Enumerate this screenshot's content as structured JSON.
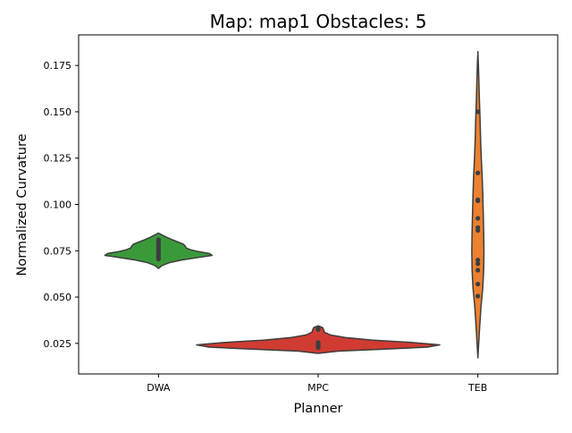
{
  "chart_data": {
    "type": "violin",
    "title": "Map: map1 Obstacles: 5",
    "xlabel": "Planner",
    "ylabel": "Normalized Curvature",
    "ylim": [
      0.0085,
      0.1915
    ],
    "yticks": [
      "0.025",
      "0.050",
      "0.075",
      "0.100",
      "0.125",
      "0.150",
      "0.175"
    ],
    "grid": false,
    "categories": [
      "DWA",
      "MPC",
      "TEB"
    ],
    "colors": {
      "DWA": "#3a9a3a",
      "MPC": "#d03b32",
      "TEB": "#ec8130",
      "edge": "#3d3d3d",
      "points": "#3d3d3d"
    },
    "series": [
      {
        "name": "DWA",
        "points": [
          0.0705,
          0.0715,
          0.0725,
          0.0735,
          0.0745,
          0.0755,
          0.0765,
          0.0775,
          0.0785,
          0.0795,
          0.081
        ],
        "profile": [
          [
            0.0655,
            0.0
          ],
          [
            0.067,
            4
          ],
          [
            0.0685,
            12
          ],
          [
            0.07,
            26
          ],
          [
            0.0715,
            46
          ],
          [
            0.0725,
            60
          ],
          [
            0.0735,
            57
          ],
          [
            0.0745,
            45
          ],
          [
            0.0755,
            36
          ],
          [
            0.0765,
            31
          ],
          [
            0.0775,
            30
          ],
          [
            0.0785,
            28
          ],
          [
            0.0795,
            23
          ],
          [
            0.081,
            15
          ],
          [
            0.0825,
            8
          ],
          [
            0.0845,
            0
          ]
        ]
      },
      {
        "name": "MPC",
        "points": [
          0.0227,
          0.0234,
          0.024,
          0.0247,
          0.0255,
          0.0325,
          0.033
        ],
        "profile": [
          [
            0.0196,
            0.0
          ],
          [
            0.0208,
            22
          ],
          [
            0.022,
            80
          ],
          [
            0.023,
            122
          ],
          [
            0.0242,
            136
          ],
          [
            0.0255,
            104
          ],
          [
            0.0268,
            60
          ],
          [
            0.0282,
            30
          ],
          [
            0.0295,
            14
          ],
          [
            0.031,
            7
          ],
          [
            0.0325,
            6
          ],
          [
            0.0335,
            5
          ],
          [
            0.0345,
            0
          ]
        ]
      },
      {
        "name": "TEB",
        "points": [
          0.0505,
          0.057,
          0.0645,
          0.068,
          0.07,
          0.086,
          0.0875,
          0.0925,
          0.102,
          0.1025,
          0.117,
          0.15
        ],
        "profile": [
          [
            0.0172,
            0.0
          ],
          [
            0.03,
            1.5
          ],
          [
            0.045,
            3.5
          ],
          [
            0.055,
            5.5
          ],
          [
            0.065,
            6.5
          ],
          [
            0.075,
            6.8
          ],
          [
            0.085,
            6.5
          ],
          [
            0.095,
            6
          ],
          [
            0.105,
            5.5
          ],
          [
            0.115,
            4.8
          ],
          [
            0.125,
            3.8
          ],
          [
            0.135,
            3
          ],
          [
            0.145,
            2.5
          ],
          [
            0.155,
            1.8
          ],
          [
            0.165,
            1.2
          ],
          [
            0.175,
            0.6
          ],
          [
            0.1825,
            0
          ]
        ]
      }
    ]
  }
}
